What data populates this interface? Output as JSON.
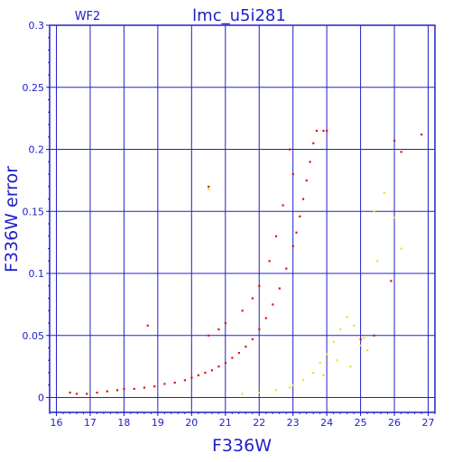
{
  "chart_data": {
    "type": "scatter",
    "title": "lmc_u5i281",
    "corner_label": "WF2",
    "xlabel": "F336W",
    "ylabel": "F336W error",
    "xlim": [
      15.8,
      27.2
    ],
    "ylim": [
      -0.012,
      0.3
    ],
    "xticks": [
      16,
      17,
      18,
      19,
      20,
      21,
      22,
      23,
      24,
      25,
      26,
      27
    ],
    "yticks": [
      0,
      0.05,
      0.1,
      0.15,
      0.2,
      0.25,
      0.3
    ],
    "ytick_labels": [
      "0",
      "0.05",
      "0.1",
      "0.15",
      "0.2",
      "0.25",
      "0.3"
    ],
    "grid": true,
    "colors": {
      "axis": "#2020c8",
      "grid": "#2020c8",
      "primary": "#e01010",
      "secondary": "#f0e020"
    },
    "series": [
      {
        "color": "#e01010",
        "points": [
          [
            16.4,
            0.004
          ],
          [
            16.6,
            0.003
          ],
          [
            16.9,
            0.003
          ],
          [
            17.2,
            0.004
          ],
          [
            17.5,
            0.005
          ],
          [
            17.8,
            0.006
          ],
          [
            18.0,
            0.007
          ],
          [
            18.3,
            0.007
          ],
          [
            18.6,
            0.008
          ],
          [
            18.9,
            0.009
          ],
          [
            19.2,
            0.011
          ],
          [
            19.5,
            0.012
          ],
          [
            19.8,
            0.014
          ],
          [
            20.0,
            0.016
          ],
          [
            20.2,
            0.018
          ],
          [
            20.4,
            0.02
          ],
          [
            20.6,
            0.022
          ],
          [
            20.8,
            0.025
          ],
          [
            21.0,
            0.028
          ],
          [
            21.2,
            0.032
          ],
          [
            21.4,
            0.036
          ],
          [
            21.6,
            0.041
          ],
          [
            21.8,
            0.047
          ],
          [
            22.0,
            0.055
          ],
          [
            22.2,
            0.064
          ],
          [
            22.4,
            0.075
          ],
          [
            22.6,
            0.088
          ],
          [
            22.8,
            0.104
          ],
          [
            23.0,
            0.122
          ],
          [
            23.1,
            0.133
          ],
          [
            23.2,
            0.146
          ],
          [
            23.3,
            0.16
          ],
          [
            23.4,
            0.175
          ],
          [
            23.5,
            0.19
          ],
          [
            23.6,
            0.205
          ],
          [
            23.7,
            0.215
          ],
          [
            23.9,
            0.215
          ],
          [
            24.0,
            0.215
          ],
          [
            22.9,
            0.2
          ],
          [
            23.0,
            0.18
          ],
          [
            22.7,
            0.155
          ],
          [
            22.5,
            0.13
          ],
          [
            22.3,
            0.11
          ],
          [
            21.8,
            0.08
          ],
          [
            21.5,
            0.07
          ],
          [
            21.0,
            0.06
          ],
          [
            20.5,
            0.05
          ],
          [
            20.8,
            0.055
          ],
          [
            22.0,
            0.09
          ],
          [
            18.7,
            0.058
          ],
          [
            20.5,
            0.17
          ],
          [
            26.0,
            0.207
          ],
          [
            26.2,
            0.198
          ],
          [
            26.8,
            0.212
          ],
          [
            25.9,
            0.094
          ],
          [
            25.4,
            0.05
          ],
          [
            25.0,
            0.047
          ]
        ]
      },
      {
        "color": "#f0e020",
        "points": [
          [
            20.5,
            0.168
          ],
          [
            21.5,
            0.003
          ],
          [
            22.0,
            0.004
          ],
          [
            22.5,
            0.006
          ],
          [
            23.0,
            0.01
          ],
          [
            23.3,
            0.014
          ],
          [
            23.6,
            0.02
          ],
          [
            23.8,
            0.028
          ],
          [
            24.0,
            0.035
          ],
          [
            24.2,
            0.045
          ],
          [
            24.4,
            0.055
          ],
          [
            24.6,
            0.065
          ],
          [
            24.8,
            0.058
          ],
          [
            25.0,
            0.042
          ],
          [
            25.2,
            0.038
          ],
          [
            25.5,
            0.11
          ],
          [
            25.7,
            0.165
          ],
          [
            26.0,
            0.145
          ],
          [
            26.2,
            0.12
          ],
          [
            25.4,
            0.15
          ],
          [
            24.3,
            0.03
          ],
          [
            24.7,
            0.025
          ],
          [
            25.1,
            0.048
          ],
          [
            22.9,
            0.008
          ],
          [
            23.9,
            0.018
          ]
        ]
      }
    ]
  }
}
